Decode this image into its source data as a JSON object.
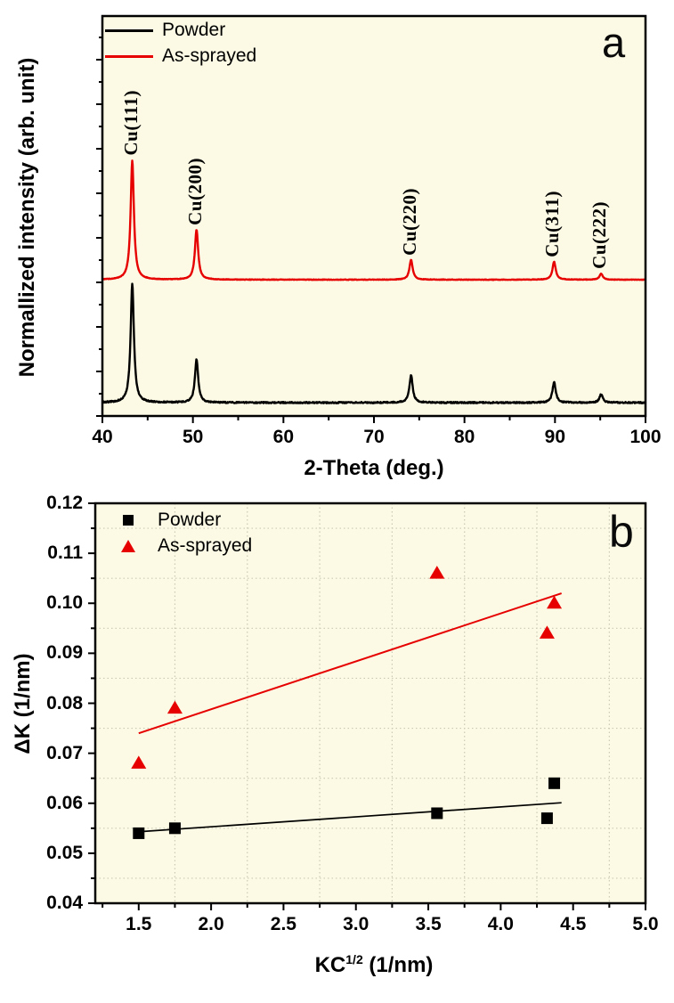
{
  "figure": {
    "background": "#ffffff",
    "plot_background": "#fcfae4",
    "grid_color": "#c9c9b6",
    "black": "#000000",
    "red": "#e60000"
  },
  "chart_data": [
    {
      "type": "line",
      "panel_label": "a",
      "title": "",
      "xlabel": "2-Theta (deg.)",
      "ylabel": "Normallized intensity (arb. unit)",
      "xlim": [
        40,
        100
      ],
      "xticks": [
        40,
        50,
        60,
        70,
        80,
        90,
        100
      ],
      "xtick_labels": [
        "40",
        "50",
        "60",
        "70",
        "80",
        "90",
        "100"
      ],
      "xminorticks": [
        45,
        55,
        65,
        75,
        85,
        95
      ],
      "yticks_unlabeled": true,
      "grid": "off",
      "legend_position": "upper-left",
      "peak_labels": [
        "Cu(111)",
        "Cu(200)",
        "Cu(220)",
        "Cu(311)",
        "Cu(222)"
      ],
      "peak_positions": [
        43.3,
        50.4,
        74.1,
        89.9,
        95.1
      ],
      "intensity_note": "normalized intensity, arbitrary units; curves offset vertically",
      "series": [
        {
          "name": "Powder",
          "color": "#000000",
          "offset": 0.0,
          "peak_heights": [
            1.0,
            0.36,
            0.23,
            0.17,
            0.07
          ]
        },
        {
          "name": "As-sprayed",
          "color": "#e60000",
          "offset": 1.03,
          "peak_heights": [
            1.0,
            0.42,
            0.165,
            0.15,
            0.05
          ]
        }
      ]
    },
    {
      "type": "scatter",
      "panel_label": "b",
      "title": "",
      "xlabel": "KC^1/2 (1/nm)",
      "xlabel_base": "KC",
      "xlabel_sup": "1/2",
      "xlabel_rest": " (1/nm)",
      "ylabel": "ΔK (1/nm)",
      "xlim": [
        1.2,
        5.0
      ],
      "ylim": [
        0.04,
        0.12
      ],
      "xticks": [
        1.5,
        2.0,
        2.5,
        3.0,
        3.5,
        4.0,
        4.5,
        5.0
      ],
      "xtick_labels": [
        "1.5",
        "2.0",
        "2.5",
        "3.0",
        "3.5",
        "4.0",
        "4.5",
        "5.0"
      ],
      "xminorticks": [
        1.25,
        1.75,
        2.25,
        2.75,
        3.25,
        3.75,
        4.25,
        4.75
      ],
      "yticks": [
        0.04,
        0.05,
        0.06,
        0.07,
        0.08,
        0.09,
        0.1,
        0.11,
        0.12
      ],
      "ytick_labels": [
        "0.04",
        "0.05",
        "0.06",
        "0.07",
        "0.08",
        "0.09",
        "0.10",
        "0.11",
        "0.12"
      ],
      "yminorticks": [
        0.045,
        0.055,
        0.065,
        0.075,
        0.085,
        0.095,
        0.105,
        0.115
      ],
      "grid": "dotted-minor",
      "grid_x": [
        1.75,
        2.25,
        2.75,
        3.25,
        3.75,
        4.25,
        4.75
      ],
      "grid_y": [
        0.045,
        0.055,
        0.065,
        0.075,
        0.085,
        0.095,
        0.105,
        0.115
      ],
      "legend_position": "upper-left",
      "series": [
        {
          "name": "Powder",
          "marker": "square",
          "color": "#000000",
          "points": [
            [
              1.5,
              0.054
            ],
            [
              1.75,
              0.055
            ],
            [
              3.56,
              0.058
            ],
            [
              4.32,
              0.057
            ],
            [
              4.37,
              0.064
            ]
          ],
          "fit_line": [
            [
              1.5,
              0.0543
            ],
            [
              4.42,
              0.0601
            ]
          ]
        },
        {
          "name": "As-sprayed",
          "marker": "triangle",
          "color": "#e60000",
          "points": [
            [
              1.5,
              0.068
            ],
            [
              1.75,
              0.079
            ],
            [
              3.56,
              0.106
            ],
            [
              4.32,
              0.094
            ],
            [
              4.37,
              0.1
            ]
          ],
          "fit_line": [
            [
              1.5,
              0.074
            ],
            [
              4.42,
              0.102
            ]
          ]
        }
      ]
    }
  ]
}
